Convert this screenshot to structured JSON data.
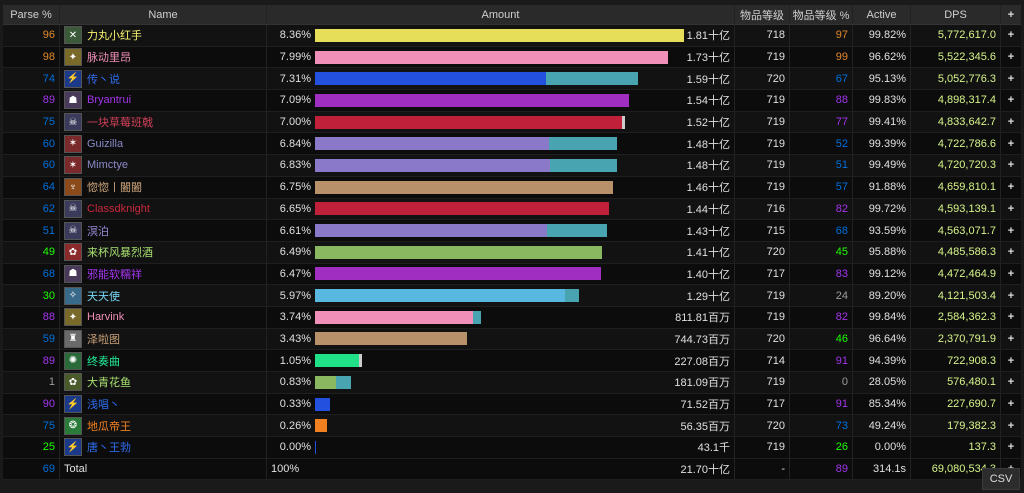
{
  "headers": {
    "parse": "Parse %",
    "name": "Name",
    "amount": "Amount",
    "ilvl": "物品等级",
    "ilvl_pct": "物品等级 %",
    "active": "Active",
    "dps": "DPS",
    "plus": "+"
  },
  "colors": {
    "parse_orange": "#e08a2b",
    "parse_purple": "#a335ee",
    "parse_blue": "#0070dd",
    "parse_green": "#1eff00",
    "parse_gray": "#9d9d9d",
    "dps": "#d7f58a"
  },
  "rows": [
    {
      "parse": "96",
      "name": "力丸小红手",
      "pct": "8.36%",
      "amount": "1.81十亿",
      "ilvl": "718",
      "ilvl_pct": "97",
      "active": "99.82%",
      "dps": "5,772,617.0",
      "frac": 0.985,
      "frac2": 0,
      "color": "#e6de58",
      "color2": "#48a4b0",
      "parse_color": "#e08a2b",
      "ilvlp_color": "#e08a2b",
      "name_color": "#f8f36e",
      "icon": "✕",
      "icon_bg": "#3a5a3a"
    },
    {
      "parse": "98",
      "name": "脉动里昂",
      "pct": "7.99%",
      "amount": "1.73十亿",
      "ilvl": "719",
      "ilvl_pct": "99",
      "active": "96.62%",
      "dps": "5,522,345.6",
      "frac": 0.942,
      "frac2": 0,
      "color": "#f090b8",
      "color2": "#48a4b0",
      "parse_color": "#e08a2b",
      "ilvlp_color": "#e08a2b",
      "name_color": "#f090b8",
      "icon": "✦",
      "icon_bg": "#7a6a2a"
    },
    {
      "parse": "74",
      "name": "传丶说",
      "pct": "7.31%",
      "amount": "1.59十亿",
      "ilvl": "720",
      "ilvl_pct": "67",
      "active": "95.13%",
      "dps": "5,052,776.3",
      "frac": 0.616,
      "frac2": 0.244,
      "color": "#2450e0",
      "color2": "#48a4b0",
      "parse_color": "#0070dd",
      "ilvlp_color": "#0070dd",
      "name_color": "#2f6cf0",
      "icon": "⚡",
      "icon_bg": "#1c3a8a"
    },
    {
      "parse": "89",
      "name": "Bryantrui",
      "pct": "7.09%",
      "amount": "1.54十亿",
      "ilvl": "719",
      "ilvl_pct": "88",
      "active": "99.83%",
      "dps": "4,898,317.4",
      "frac": 0.837,
      "frac2": 0,
      "color": "#a02ec0",
      "color2": "#48a4b0",
      "parse_color": "#a335ee",
      "ilvlp_color": "#a335ee",
      "name_color": "#a335ee",
      "icon": "☗",
      "icon_bg": "#4a3a5a"
    },
    {
      "parse": "75",
      "name": "一块草莓班戟",
      "pct": "7.00%",
      "amount": "1.52十亿",
      "ilvl": "719",
      "ilvl_pct": "77",
      "active": "99.41%",
      "dps": "4,833,642.7",
      "frac": 0.818,
      "frac2": 0.008,
      "color": "#c0203a",
      "color2": "#cccccc",
      "parse_color": "#0070dd",
      "ilvlp_color": "#a335ee",
      "name_color": "#d04058",
      "icon": "☠",
      "icon_bg": "#3a3a5a"
    },
    {
      "parse": "60",
      "name": "Guizilla",
      "pct": "6.84%",
      "amount": "1.48十亿",
      "ilvl": "719",
      "ilvl_pct": "52",
      "active": "99.39%",
      "dps": "4,722,786.6",
      "frac": 0.624,
      "frac2": 0.18,
      "color": "#8a78c8",
      "color2": "#48a4b0",
      "parse_color": "#0070dd",
      "ilvlp_color": "#0070dd",
      "name_color": "#8a8ac8",
      "icon": "✶",
      "icon_bg": "#7a2a2a"
    },
    {
      "parse": "60",
      "name": "Mimctye",
      "pct": "6.83%",
      "amount": "1.48十亿",
      "ilvl": "719",
      "ilvl_pct": "51",
      "active": "99.49%",
      "dps": "4,720,720.3",
      "frac": 0.627,
      "frac2": 0.177,
      "color": "#8a78c8",
      "color2": "#48a4b0",
      "parse_color": "#0070dd",
      "ilvlp_color": "#0070dd",
      "name_color": "#8a8ac8",
      "icon": "✶",
      "icon_bg": "#7a2a2a"
    },
    {
      "parse": "64",
      "name": "惚惚丨闔闔",
      "pct": "6.75%",
      "amount": "1.46十亿",
      "ilvl": "719",
      "ilvl_pct": "57",
      "active": "91.88%",
      "dps": "4,659,810.1",
      "frac": 0.795,
      "frac2": 0,
      "color": "#b8906a",
      "color2": "#48a4b0",
      "parse_color": "#0070dd",
      "ilvlp_color": "#0070dd",
      "name_color": "#c8a078",
      "icon": "♆",
      "icon_bg": "#8a4a1a"
    },
    {
      "parse": "62",
      "name": "Classdknight",
      "pct": "6.65%",
      "amount": "1.44十亿",
      "ilvl": "716",
      "ilvl_pct": "82",
      "active": "99.72%",
      "dps": "4,593,139.1",
      "frac": 0.785,
      "frac2": 0,
      "color": "#c0203a",
      "color2": "#48a4b0",
      "parse_color": "#0070dd",
      "ilvlp_color": "#a335ee",
      "name_color": "#c8283e",
      "icon": "☠",
      "icon_bg": "#3a3a5a"
    },
    {
      "parse": "51",
      "name": "溟泊",
      "pct": "6.61%",
      "amount": "1.43十亿",
      "ilvl": "715",
      "ilvl_pct": "68",
      "active": "93.59%",
      "dps": "4,563,071.7",
      "frac": 0.618,
      "frac2": 0.16,
      "color": "#8a78c8",
      "color2": "#48a4b0",
      "parse_color": "#0070dd",
      "ilvlp_color": "#0070dd",
      "name_color": "#9a8ad8",
      "icon": "☠",
      "icon_bg": "#3a3a5a"
    },
    {
      "parse": "49",
      "name": "来杯风暴烈酒",
      "pct": "6.49%",
      "amount": "1.41十亿",
      "ilvl": "720",
      "ilvl_pct": "45",
      "active": "95.88%",
      "dps": "4,485,586.3",
      "frac": 0.765,
      "frac2": 0,
      "color": "#8ab860",
      "color2": "#48a4b0",
      "parse_color": "#1eff00",
      "ilvlp_color": "#1eff00",
      "name_color": "#a8e070",
      "icon": "✿",
      "icon_bg": "#8a2a2a"
    },
    {
      "parse": "68",
      "name": "邪能软糯祥",
      "pct": "6.47%",
      "amount": "1.40十亿",
      "ilvl": "717",
      "ilvl_pct": "83",
      "active": "99.12%",
      "dps": "4,472,464.9",
      "frac": 0.763,
      "frac2": 0,
      "color": "#a02ec0",
      "color2": "#48a4b0",
      "parse_color": "#0070dd",
      "ilvlp_color": "#a335ee",
      "name_color": "#a335ee",
      "icon": "☗",
      "icon_bg": "#4a3a5a"
    },
    {
      "parse": "30",
      "name": "天天使",
      "pct": "5.97%",
      "amount": "1.29十亿",
      "ilvl": "719",
      "ilvl_pct": "24",
      "active": "89.20%",
      "dps": "4,121,503.4",
      "frac": 0.667,
      "frac2": 0.037,
      "color": "#58b8e0",
      "color2": "#48a4b0",
      "parse_color": "#1eff00",
      "ilvlp_color": "#9d9d9d",
      "name_color": "#78d8f8",
      "icon": "✧",
      "icon_bg": "#3a6a8a"
    },
    {
      "parse": "88",
      "name": "Harvink",
      "pct": "3.74%",
      "amount": "811.81百万",
      "ilvl": "719",
      "ilvl_pct": "82",
      "active": "99.84%",
      "dps": "2,584,362.3",
      "frac": 0.421,
      "frac2": 0.021,
      "color": "#f090b8",
      "color2": "#48a4b0",
      "parse_color": "#a335ee",
      "ilvlp_color": "#a335ee",
      "name_color": "#f090b8",
      "icon": "✦",
      "icon_bg": "#7a6a2a"
    },
    {
      "parse": "59",
      "name": "泽啦图",
      "pct": "3.43%",
      "amount": "744.73百万",
      "ilvl": "720",
      "ilvl_pct": "46",
      "active": "96.64%",
      "dps": "2,370,791.9",
      "frac": 0.405,
      "frac2": 0,
      "color": "#b8906a",
      "color2": "#48a4b0",
      "parse_color": "#0070dd",
      "ilvlp_color": "#1eff00",
      "name_color": "#c8a078",
      "icon": "♜",
      "icon_bg": "#6a6a6a"
    },
    {
      "parse": "89",
      "name": "终奏曲",
      "pct": "1.05%",
      "amount": "227.08百万",
      "ilvl": "714",
      "ilvl_pct": "91",
      "active": "94.39%",
      "dps": "722,908.3",
      "frac": 0.117,
      "frac2": 0.008,
      "color": "#20e088",
      "color2": "#cccccc",
      "parse_color": "#a335ee",
      "ilvlp_color": "#a335ee",
      "name_color": "#20f098",
      "icon": "✺",
      "icon_bg": "#2a6a3a"
    },
    {
      "parse": "1",
      "name": "大青花鱼",
      "pct": "0.83%",
      "amount": "181.09百万",
      "ilvl": "719",
      "ilvl_pct": "0",
      "active": "28.05%",
      "dps": "576,480.1",
      "frac": 0.056,
      "frac2": 0.04,
      "color": "#8ab860",
      "color2": "#48a4b0",
      "parse_color": "#9d9d9d",
      "ilvlp_color": "#9d9d9d",
      "name_color": "#a8e070",
      "icon": "✿",
      "icon_bg": "#4a5a2a"
    },
    {
      "parse": "90",
      "name": "浅唱丶",
      "pct": "0.33%",
      "amount": "71.52百万",
      "ilvl": "717",
      "ilvl_pct": "91",
      "active": "85.34%",
      "dps": "227,690.7",
      "frac": 0.04,
      "frac2": 0,
      "color": "#2450e0",
      "color2": "#48a4b0",
      "parse_color": "#a335ee",
      "ilvlp_color": "#a335ee",
      "name_color": "#2f6cf0",
      "icon": "⚡",
      "icon_bg": "#1c3a8a"
    },
    {
      "parse": "75",
      "name": "地瓜帝王",
      "pct": "0.26%",
      "amount": "56.35百万",
      "ilvl": "720",
      "ilvl_pct": "73",
      "active": "49.24%",
      "dps": "179,382.3",
      "frac": 0.032,
      "frac2": 0,
      "color": "#f08020",
      "color2": "#48a4b0",
      "parse_color": "#0070dd",
      "ilvlp_color": "#0070dd",
      "name_color": "#f08020",
      "icon": "❂",
      "icon_bg": "#2a7a3a"
    },
    {
      "parse": "25",
      "name": "唐丶王勃",
      "pct": "0.00%",
      "amount": "43.1千",
      "ilvl": "719",
      "ilvl_pct": "26",
      "active": "0.00%",
      "dps": "137.3",
      "frac": 0.003,
      "frac2": 0,
      "color": "#2450e0",
      "color2": "#48a4b0",
      "parse_color": "#1eff00",
      "ilvlp_color": "#1eff00",
      "name_color": "#2f6cf0",
      "icon": "⚡",
      "icon_bg": "#1c3a8a"
    }
  ],
  "total": {
    "parse": "69",
    "name": "Total",
    "pct": "100%",
    "amount": "21.70十亿",
    "ilvl": "-",
    "ilvl_pct": "89",
    "active": "314.1s",
    "dps": "69,080,534.3"
  },
  "csv_label": "CSV"
}
